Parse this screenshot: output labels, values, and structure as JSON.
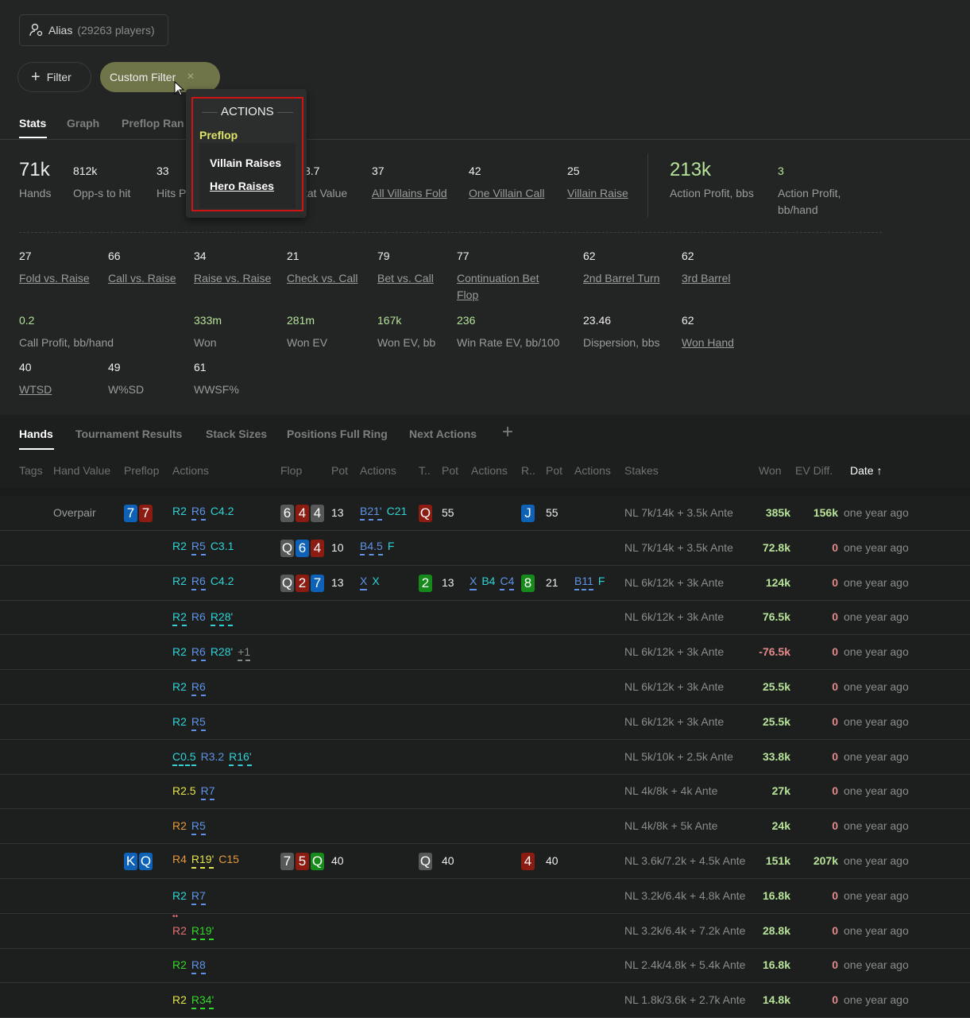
{
  "alias": {
    "label": "Alias",
    "players": "(29263 players)"
  },
  "filters": {
    "add_label": "Filter",
    "custom_label": "Custom Filter",
    "close": "×"
  },
  "stat_tabs": [
    "Stats",
    "Graph",
    "Preflop Ran"
  ],
  "popup": {
    "section": "ACTIONS",
    "group": "Preflop",
    "items": [
      "Villain Raises",
      "Hero Raises"
    ]
  },
  "stats_row1": [
    {
      "value": "71k",
      "label": "Hands"
    },
    {
      "value": "812k",
      "label": "Opp-s to hit"
    },
    {
      "value": "33",
      "label": "Hits P"
    },
    {
      "value": "3.7",
      "label": "tat Value"
    },
    {
      "value": "37",
      "label": "All Villains Fold"
    },
    {
      "value": "42",
      "label": "One Villain Call"
    },
    {
      "value": "25",
      "label": "Villain Raise"
    },
    {
      "value": "213k",
      "label": "Action Profit, bbs"
    },
    {
      "value": "3",
      "label": "Action Profit,",
      "label2": "bb/hand"
    }
  ],
  "stats_row2": [
    {
      "value": "27",
      "label": "Fold vs. Raise"
    },
    {
      "value": "66",
      "label": "Call vs. Raise"
    },
    {
      "value": "34",
      "label": "Raise vs. Raise"
    },
    {
      "value": "21",
      "label": "Check vs. Call"
    },
    {
      "value": "79",
      "label": "Bet vs. Call"
    },
    {
      "value": "77",
      "label": "Continuation Bet",
      "label2": "Flop"
    },
    {
      "value": "62",
      "label": "2nd Barrel Turn"
    },
    {
      "value": "62",
      "label": "3rd Barrel"
    }
  ],
  "stats_row3": [
    {
      "value": "0.2",
      "label": "Call Profit, bb/hand"
    },
    {
      "value": "333m",
      "label": "Won"
    },
    {
      "value": "281m",
      "label": "Won EV"
    },
    {
      "value": "167k",
      "label": "Won EV, bb"
    },
    {
      "value": "236",
      "label": "Win Rate EV, bb/100"
    },
    {
      "value": "23.46",
      "label": "Dispersion, bbs"
    },
    {
      "value": "62",
      "label": "Won Hand"
    }
  ],
  "stats_row4": [
    {
      "value": "40",
      "label": "WTSD"
    },
    {
      "value": "49",
      "label": "W%SD"
    },
    {
      "value": "61",
      "label": "WWSF%"
    }
  ],
  "hand_tabs": [
    "Hands",
    "Tournament Results",
    "Stack Sizes",
    "Positions Full Ring",
    "Next Actions",
    "+"
  ],
  "columns": [
    "Tags",
    "Hand Value",
    "Preflop",
    "Actions",
    "Flop",
    "Pot",
    "Actions",
    "T..",
    "Pot",
    "Actions",
    "R..",
    "Pot",
    "Actions",
    "Stakes",
    "Won",
    "EV Diff.",
    "Date ↑"
  ],
  "colors": {
    "c": "#2fd3d6",
    "b": "#5f92e6",
    "y": "#e3e34a",
    "o": "#e39a3c",
    "p": "#e46f6f",
    "g": "#33d62a",
    "gr": "#8a8c8b",
    "card_blue": "#0d62b8",
    "card_red": "#8c1b11",
    "card_gray": "#575858",
    "card_green": "#168a1a",
    "positive": "#b7e39a",
    "negative": "#e58a8a",
    "zero": "#e08a8a"
  },
  "rows": [
    {
      "hand_value": "Overpair",
      "preflop": [
        [
          "7",
          "blue"
        ],
        [
          "7",
          "red"
        ]
      ],
      "pa": [
        [
          "R2",
          "c",
          0
        ],
        [
          "R6",
          "b",
          1
        ],
        [
          "C4.2",
          "c",
          0
        ]
      ],
      "flop": [
        [
          "6",
          "gray"
        ],
        [
          "4",
          "red"
        ],
        [
          "4",
          "gray"
        ]
      ],
      "fpot": "13",
      "fa": [
        [
          "B21'",
          "b",
          1
        ],
        [
          "C21",
          "c",
          0
        ]
      ],
      "turn": [
        [
          "Q",
          "red"
        ]
      ],
      "tpot": "55",
      "ta": [],
      "river": [
        [
          "J",
          "blue"
        ]
      ],
      "rpot": "55",
      "ra": [],
      "stakes": "NL 7k/14k + 3.5k Ante",
      "won": "385k",
      "ev": "156k",
      "date": "one year ago"
    },
    {
      "pa": [
        [
          "R2",
          "c",
          0
        ],
        [
          "R5",
          "b",
          1
        ],
        [
          "C3.1",
          "c",
          0
        ]
      ],
      "flop": [
        [
          "Q",
          "gray"
        ],
        [
          "6",
          "blue"
        ],
        [
          "4",
          "red"
        ]
      ],
      "fpot": "10",
      "fa": [
        [
          "B4.5",
          "b",
          1
        ],
        [
          "F",
          "c",
          0
        ]
      ],
      "stakes": "NL 7k/14k + 3.5k Ante",
      "won": "72.8k",
      "ev": "0",
      "date": "one year ago"
    },
    {
      "pa": [
        [
          "R2",
          "c",
          0
        ],
        [
          "R6",
          "b",
          1
        ],
        [
          "C4.2",
          "c",
          0
        ]
      ],
      "flop": [
        [
          "Q",
          "gray"
        ],
        [
          "2",
          "red"
        ],
        [
          "7",
          "blue"
        ]
      ],
      "fpot": "13",
      "fa": [
        [
          "X",
          "b",
          1
        ],
        [
          "X",
          "c",
          0
        ]
      ],
      "turn": [
        [
          "2",
          "green"
        ]
      ],
      "tpot": "13",
      "ta": [
        [
          "X",
          "b",
          1
        ],
        [
          "B4",
          "c",
          0
        ],
        [
          "C4",
          "b",
          1
        ]
      ],
      "river": [
        [
          "8",
          "green"
        ]
      ],
      "rpot": "21",
      "ra": [
        [
          "B11",
          "b",
          1
        ],
        [
          "F",
          "c",
          0
        ]
      ],
      "stakes": "NL 6k/12k + 3k Ante",
      "won": "124k",
      "ev": "0",
      "date": "one year ago"
    },
    {
      "pa": [
        [
          "R2",
          "c",
          1
        ],
        [
          "R6",
          "b",
          0
        ],
        [
          "R28'",
          "c",
          1
        ]
      ],
      "stakes": "NL 6k/12k + 3k Ante",
      "won": "76.5k",
      "ev": "0",
      "date": "one year ago"
    },
    {
      "pa": [
        [
          "R2",
          "c",
          0
        ],
        [
          "R6",
          "b",
          1
        ],
        [
          "R28'",
          "c",
          0
        ],
        [
          "+1",
          "gr",
          1
        ]
      ],
      "stakes": "NL 6k/12k + 3k Ante",
      "won": "-76.5k",
      "ev": "0",
      "date": "one year ago"
    },
    {
      "pa": [
        [
          "R2",
          "c",
          0
        ],
        [
          "R6",
          "b",
          1
        ]
      ],
      "stakes": "NL 6k/12k + 3k Ante",
      "won": "25.5k",
      "ev": "0",
      "date": "one year ago"
    },
    {
      "pa": [
        [
          "R2",
          "c",
          0
        ],
        [
          "R5",
          "b",
          1
        ]
      ],
      "stakes": "NL 6k/12k + 3k Ante",
      "won": "25.5k",
      "ev": "0",
      "date": "one year ago"
    },
    {
      "pa": [
        [
          "C0.5",
          "c",
          1
        ],
        [
          "R3.2",
          "b",
          0
        ],
        [
          "R16'",
          "c",
          1
        ]
      ],
      "stakes": "NL 5k/10k + 2.5k Ante",
      "won": "33.8k",
      "ev": "0",
      "date": "one year ago"
    },
    {
      "pa": [
        [
          "R2.5",
          "y",
          0
        ],
        [
          "R7",
          "b",
          1
        ]
      ],
      "stakes": "NL 4k/8k + 4k Ante",
      "won": "27k",
      "ev": "0",
      "date": "one year ago"
    },
    {
      "pa": [
        [
          "R2",
          "o",
          0
        ],
        [
          "R5",
          "b",
          1
        ]
      ],
      "stakes": "NL 4k/8k + 5k Ante",
      "won": "24k",
      "ev": "0",
      "date": "one year ago"
    },
    {
      "preflop": [
        [
          "K",
          "blue"
        ],
        [
          "Q",
          "blue"
        ]
      ],
      "pa": [
        [
          "R4",
          "o",
          0
        ],
        [
          "R19'",
          "y",
          1
        ],
        [
          "C15",
          "o",
          0
        ]
      ],
      "flop": [
        [
          "7",
          "gray"
        ],
        [
          "5",
          "red"
        ],
        [
          "Q",
          "green"
        ]
      ],
      "fpot": "40",
      "turn": [
        [
          "Q",
          "gray"
        ]
      ],
      "tpot": "40",
      "river": [
        [
          "4",
          "red"
        ]
      ],
      "rpot": "40",
      "stakes": "NL 3.6k/7.2k + 4.5k Ante",
      "won": "151k",
      "ev": "207k",
      "date": "one year ago"
    },
    {
      "pa": [
        [
          "R2",
          "c",
          0
        ],
        [
          "R7",
          "b",
          1
        ]
      ],
      "stakes": "NL 3.2k/6.4k + 4.8k Ante",
      "won": "16.8k",
      "ev": "0",
      "date": "one year ago"
    },
    {
      "pa": [
        [
          "R2",
          "p",
          0
        ],
        [
          "R19'",
          "g",
          1
        ]
      ],
      "stakes": "NL 3.2k/6.4k + 7.2k Ante",
      "won": "28.8k",
      "ev": "0",
      "date": "one year ago"
    },
    {
      "pa": [
        [
          "R2",
          "g",
          0
        ],
        [
          "R8",
          "b",
          1
        ]
      ],
      "stakes": "NL 2.4k/4.8k + 5.4k Ante",
      "won": "16.8k",
      "ev": "0",
      "date": "one year ago"
    },
    {
      "pa": [
        [
          "R2",
          "y",
          0
        ],
        [
          "R34'",
          "g",
          1
        ]
      ],
      "stakes": "NL 1.8k/3.6k + 2.7k Ante",
      "won": "14.8k",
      "ev": "0",
      "date": "one year ago"
    }
  ]
}
